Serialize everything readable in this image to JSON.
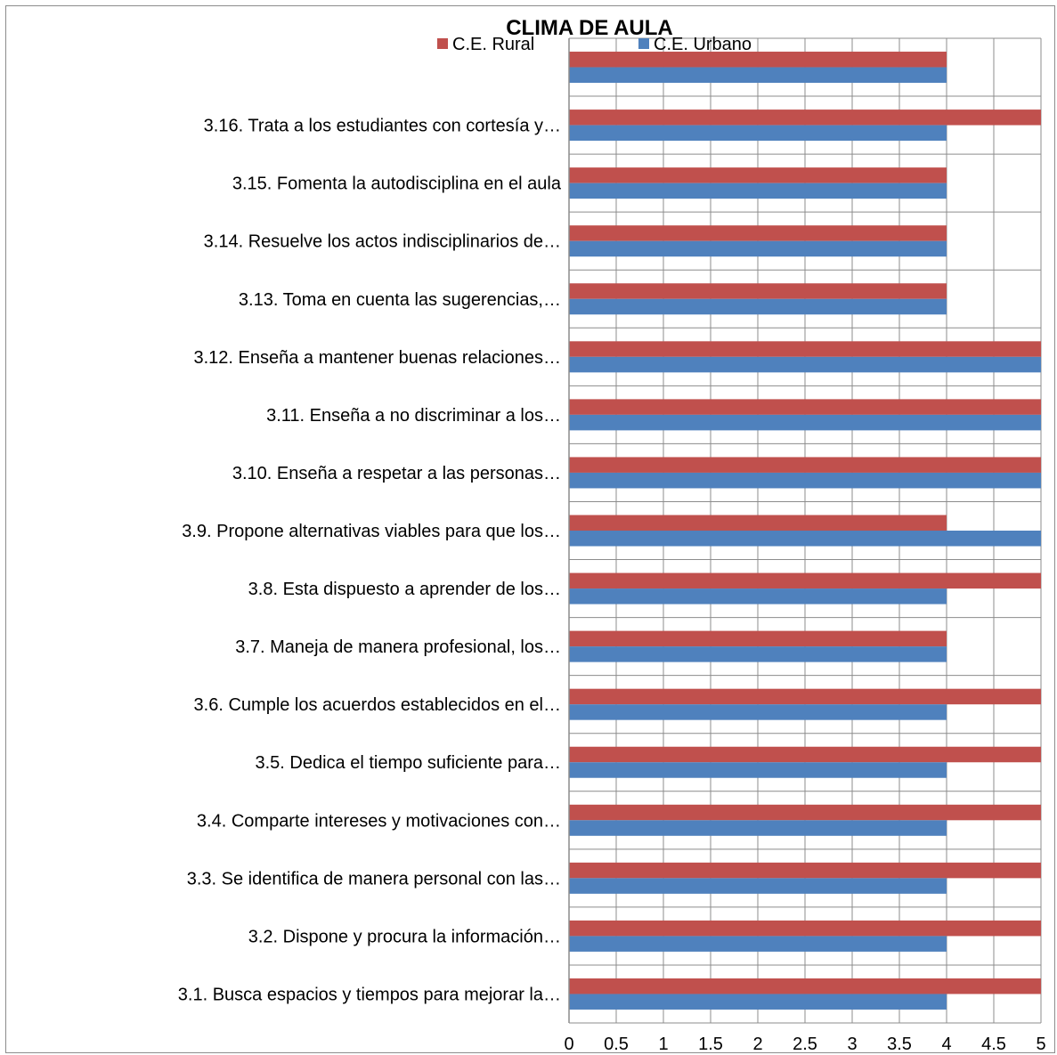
{
  "chart_data": {
    "type": "bar",
    "orientation": "horizontal",
    "title": "CLIMA DE AULA",
    "legend_position": "top",
    "grid": true,
    "xlim": [
      0,
      5
    ],
    "x_ticks": [
      "0",
      "0.5",
      "1",
      "1.5",
      "2",
      "2.5",
      "3",
      "3.5",
      "4",
      "4.5",
      "5"
    ],
    "categories": [
      "3.1.  Busca espacios y tiempos para mejorar la…",
      "3.2.  Dispone y procura la información…",
      "3.3.  Se identifica de manera personal con las…",
      "3.4.  Comparte intereses y motivaciones con…",
      "3.5.  Dedica el tiempo suficiente para…",
      "3.6.  Cumple los acuerdos establecidos en el…",
      "3.7.  Maneja de manera  profesional, los…",
      "3.8.  Esta dispuesto a aprender de los…",
      "3.9.  Propone alternativas viables para que los…",
      "3.10.   Enseña a respetar a las personas…",
      "3.11.   Enseña a no discriminar a los…",
      "3.12.   Enseña a mantener buenas relaciones…",
      "3.13.   Toma en cuenta las sugerencias,…",
      "3.14.   Resuelve los actos indisciplinarios de…",
      "3.15.   Fomenta la autodisciplina en el aula",
      "3.16.   Trata a los estudiantes con cortesía y…",
      ""
    ],
    "series": [
      {
        "name": "C.E. Rural",
        "color": "#C0504D",
        "values": [
          5,
          5,
          5,
          5,
          5,
          5,
          4,
          5,
          4,
          5,
          5,
          5,
          4,
          4,
          4,
          5,
          4
        ]
      },
      {
        "name": "C.E. Urbano",
        "color": "#4F81BD",
        "values": [
          4,
          4,
          4,
          4,
          4,
          4,
          4,
          4,
          5,
          5,
          5,
          5,
          4,
          4,
          4,
          4,
          4
        ]
      }
    ]
  }
}
